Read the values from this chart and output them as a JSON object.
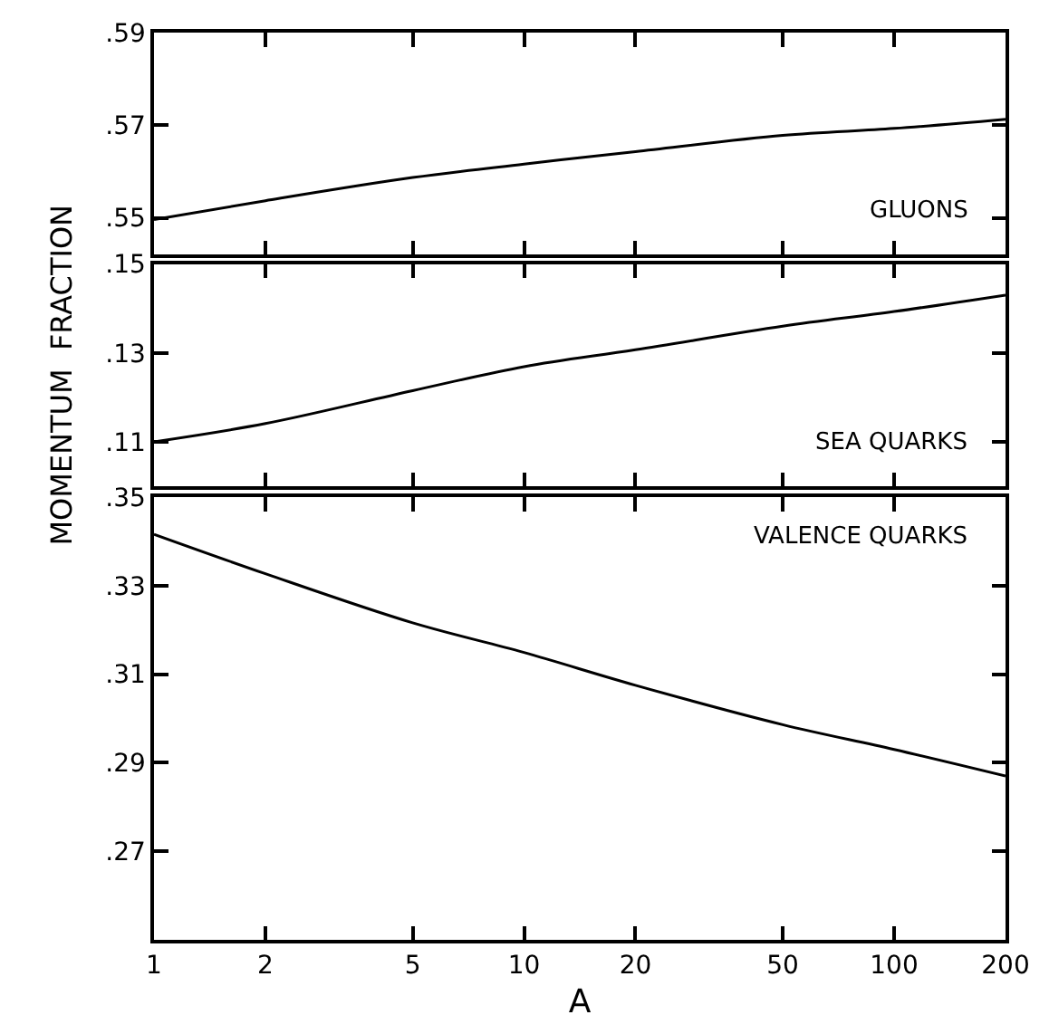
{
  "chart_data": [
    {
      "type": "line",
      "x": [
        1,
        2,
        5,
        10,
        20,
        50,
        100,
        200
      ],
      "xlim": [
        1,
        200
      ],
      "log": "x",
      "xticks": [
        1,
        2,
        5,
        10,
        20,
        50,
        100,
        200
      ],
      "ylim": [
        0.542,
        0.59
      ],
      "yticks": [
        {
          "value": 0.55,
          "label": ".55"
        },
        {
          "value": 0.57,
          "label": ".57"
        },
        {
          "value": 0.59,
          "label": ".59"
        }
      ],
      "tick_labels": "y",
      "marker": "none",
      "line_style": "solid",
      "annotations": [
        "GLUONS"
      ],
      "series": [
        {
          "color": "#000000",
          "values": [
            0.5496,
            0.5537,
            0.5587,
            0.5616,
            0.5643,
            0.5678,
            0.5693,
            0.5713
          ]
        }
      ]
    },
    {
      "type": "line",
      "x": [
        1,
        2,
        5,
        10,
        20,
        50,
        100,
        200
      ],
      "xlim": [
        1,
        200
      ],
      "log": "x",
      "xticks": [
        1,
        2,
        5,
        10,
        20,
        50,
        100,
        200
      ],
      "ylim": [
        0.1,
        0.15
      ],
      "yticks": [
        {
          "value": 0.11,
          "label": ".11"
        },
        {
          "value": 0.13,
          "label": ".13"
        },
        {
          "value": 0.15,
          "label": ".15"
        }
      ],
      "tick_labels": "y",
      "marker": "none",
      "line_style": "solid",
      "ylabel": "MOMENTUM  FRACTION",
      "annotations": [
        "SEA QUARKS"
      ],
      "series": [
        {
          "color": "#000000",
          "values": [
            0.11,
            0.1141,
            0.1215,
            0.1269,
            0.1307,
            0.136,
            0.1393,
            0.143
          ]
        }
      ]
    },
    {
      "type": "line",
      "x": [
        1,
        2,
        5,
        10,
        20,
        50,
        100,
        200
      ],
      "xlim": [
        1,
        200
      ],
      "log": "x",
      "xticks": [
        1,
        2,
        5,
        10,
        20,
        50,
        100,
        200
      ],
      "ylim": [
        0.25,
        0.35
      ],
      "yticks": [
        {
          "value": 0.27,
          "label": ".27"
        },
        {
          "value": 0.29,
          "label": ".29"
        },
        {
          "value": 0.31,
          "label": ".31"
        },
        {
          "value": 0.33,
          "label": ".33"
        },
        {
          "value": 0.35,
          "label": ".35"
        }
      ],
      "marker": "none",
      "line_style": "solid",
      "xlabel": "A",
      "annotations": [
        "VALENCE QUARKS"
      ],
      "series": [
        {
          "color": "#000000",
          "values": [
            0.3416,
            0.3327,
            0.3216,
            0.3149,
            0.3075,
            0.2986,
            0.293,
            0.287
          ]
        }
      ]
    }
  ]
}
